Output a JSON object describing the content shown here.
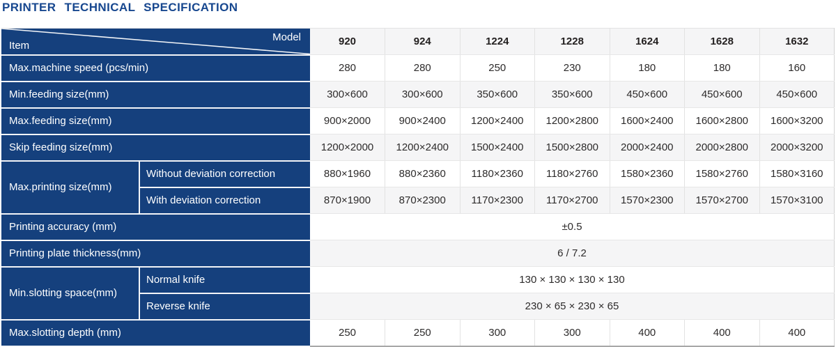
{
  "title": "PRINTER TECHNICAL SPECIFICATION",
  "table": {
    "corner": {
      "item_label": "Item",
      "model_label": "Model"
    },
    "models": [
      "920",
      "924",
      "1224",
      "1228",
      "1624",
      "1628",
      "1632"
    ],
    "rows": [
      {
        "type": "values",
        "label": "Max.machine speed (pcs/min)",
        "values": [
          "280",
          "280",
          "250",
          "230",
          "180",
          "180",
          "160"
        ]
      },
      {
        "type": "values",
        "label": "Min.feeding size(mm)",
        "values": [
          "300×600",
          "300×600",
          "350×600",
          "350×600",
          "450×600",
          "450×600",
          "450×600"
        ]
      },
      {
        "type": "values",
        "label": "Max.feeding size(mm)",
        "values": [
          "900×2000",
          "900×2400",
          "1200×2400",
          "1200×2800",
          "1600×2400",
          "1600×2800",
          "1600×3200"
        ]
      },
      {
        "type": "values",
        "label": "Skip feeding size(mm)",
        "values": [
          "1200×2000",
          "1200×2400",
          "1500×2400",
          "1500×2800",
          "2000×2400",
          "2000×2800",
          "2000×3200"
        ]
      },
      {
        "type": "group",
        "label": "Max.printing size(mm)",
        "subrows": [
          {
            "sublabel": "Without deviation correction",
            "values": [
              "880×1960",
              "880×2360",
              "1180×2360",
              "1180×2760",
              "1580×2360",
              "1580×2760",
              "1580×3160"
            ]
          },
          {
            "sublabel": "With deviation correction",
            "values": [
              "870×1900",
              "870×2300",
              "1170×2300",
              "1170×2700",
              "1570×2300",
              "1570×2700",
              "1570×3100"
            ]
          }
        ]
      },
      {
        "type": "span",
        "label": "Printing accuracy (mm)",
        "value": "±0.5"
      },
      {
        "type": "span",
        "label": "Printing plate thickness(mm)",
        "value": "6 / 7.2"
      },
      {
        "type": "group_span",
        "label": "Min.slotting space(mm)",
        "subrows": [
          {
            "sublabel": "Normal knife",
            "value": "130 × 130 × 130 × 130"
          },
          {
            "sublabel": "Reverse knife",
            "value": "230 × 65 × 230 × 65"
          }
        ]
      },
      {
        "type": "values",
        "label": "Max.slotting depth (mm)",
        "values": [
          "250",
          "250",
          "300",
          "300",
          "400",
          "400",
          "400"
        ]
      }
    ]
  },
  "colors": {
    "navy_cell": "#15407d",
    "title_blue": "#17478f",
    "alt_row": "#f5f5f6",
    "row_white": "#ffffff",
    "cell_border": "#e2e2e2",
    "table_bottom_border": "#a8a8a8",
    "diagonal_line": "#f3f5f8",
    "value_text": "#2d2b2b"
  }
}
